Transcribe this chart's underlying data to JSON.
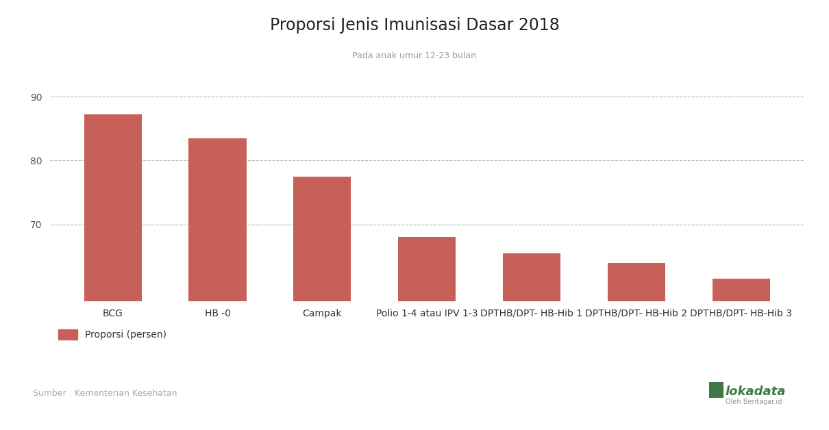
{
  "title": "Proporsi Jenis Imunisasi Dasar 2018",
  "subtitle": "Pada anak umur 12-23 bulan",
  "categories": [
    "BCG",
    "HB -0",
    "Campak",
    "Polio 1-4 atau IPV 1-3",
    "DPTHB/DPT- HB-Hib 1",
    "DPTHB/DPT- HB-Hib 2",
    "DPTHB/DPT- HB-Hib 3"
  ],
  "values": [
    87.2,
    83.5,
    77.5,
    68.0,
    65.5,
    64.0,
    61.5
  ],
  "bar_color": "#c8605a",
  "background_color": "#ffffff",
  "ylim_min": 58,
  "ylim_max": 93,
  "yticks": [
    70,
    80,
    90
  ],
  "grid_color": "#bbbbbb",
  "title_fontsize": 17,
  "subtitle_fontsize": 9,
  "xtick_fontsize": 10,
  "ytick_fontsize": 10,
  "legend_label": "Proporsi (persen)",
  "source_text": "Sumber : Kementerian Kesehatan",
  "lokadata_text": "lokadata",
  "lokadata_sub": "Oleh Beritagar.id"
}
